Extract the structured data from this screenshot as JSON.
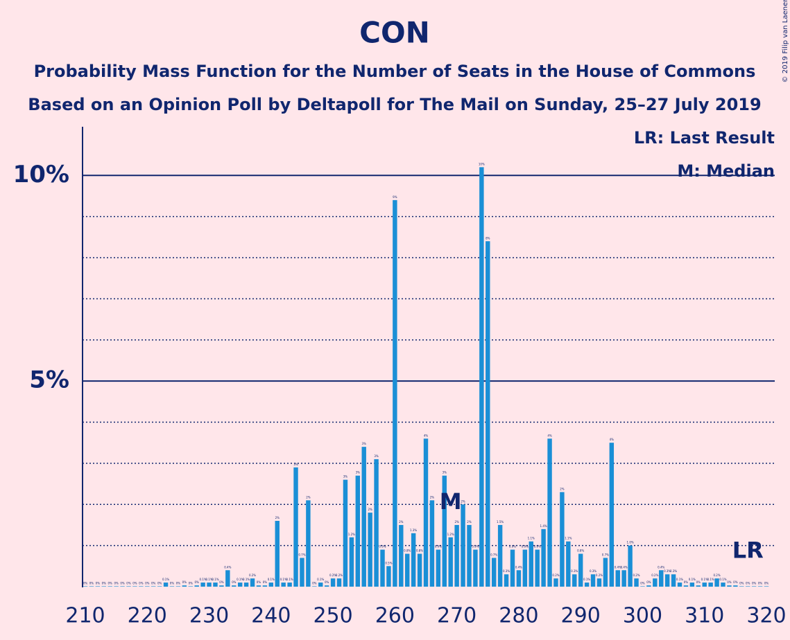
{
  "chart_data": {
    "type": "bar",
    "title": "CON",
    "subtitle": "Probability Mass Function for the Number of Seats in the House of Commons",
    "subtitle2": "Based on an Opinion Poll by Deltapoll for The Mail on Sunday, 25–27 July 2019",
    "credit": "© 2019 Filip van Laenen",
    "legend": [
      "LR: Last Result",
      "M: Median"
    ],
    "color": "#1a8fd6",
    "x": [
      210,
      211,
      212,
      213,
      214,
      215,
      216,
      217,
      218,
      219,
      220,
      221,
      222,
      223,
      224,
      225,
      226,
      227,
      228,
      229,
      230,
      231,
      232,
      233,
      234,
      235,
      236,
      237,
      238,
      239,
      240,
      241,
      242,
      243,
      244,
      245,
      246,
      247,
      248,
      249,
      250,
      251,
      252,
      253,
      254,
      255,
      256,
      257,
      258,
      259,
      260,
      261,
      262,
      263,
      264,
      265,
      266,
      267,
      268,
      269,
      270,
      271,
      272,
      273,
      274,
      275,
      276,
      277,
      278,
      279,
      280,
      281,
      282,
      283,
      284,
      285,
      286,
      287,
      288,
      289,
      290,
      291,
      292,
      293,
      294,
      295,
      296,
      297,
      298,
      299,
      300,
      301,
      302,
      303,
      304,
      305,
      306,
      307,
      308,
      309,
      310,
      311,
      312,
      313,
      314,
      315,
      316,
      317,
      318,
      319,
      320
    ],
    "values": [
      0.01,
      0.01,
      0.01,
      0.01,
      0.01,
      0.01,
      0.01,
      0.01,
      0.01,
      0.01,
      0.01,
      0.01,
      0.01,
      0.1,
      0.01,
      0.01,
      0.03,
      0.01,
      0.03,
      0.1,
      0.1,
      0.1,
      0.03,
      0.4,
      0.03,
      0.1,
      0.1,
      0.2,
      0.03,
      0.03,
      0.1,
      1.6,
      0.1,
      0.1,
      2.9,
      0.7,
      2.1,
      0.01,
      0.1,
      0.03,
      0.2,
      0.2,
      2.6,
      1.2,
      2.7,
      3.4,
      1.8,
      3.1,
      0.9,
      0.5,
      9.4,
      1.5,
      0.8,
      1.3,
      0.8,
      3.6,
      2.1,
      0.9,
      2.7,
      1.2,
      1.5,
      2.0,
      1.5,
      0.9,
      10.2,
      8.4,
      0.7,
      1.5,
      0.3,
      0.9,
      0.4,
      0.9,
      1.1,
      0.9,
      1.4,
      3.6,
      0.2,
      2.3,
      1.1,
      0.3,
      0.8,
      0.1,
      0.3,
      0.2,
      0.7,
      3.5,
      0.4,
      0.4,
      1.0,
      0.2,
      0.01,
      0.03,
      0.2,
      0.4,
      0.3,
      0.3,
      0.1,
      0.03,
      0.1,
      0.03,
      0.1,
      0.1,
      0.2,
      0.1,
      0.03,
      0.03,
      0.01,
      0.01,
      0.01,
      0.01,
      0.01
    ],
    "value_labels": [
      "0%",
      "0%",
      "0%",
      "0%",
      "0%",
      "0%",
      "0%",
      "0%",
      "0%",
      "0%",
      "0%",
      "0%",
      "0%",
      "0.1%",
      "0%",
      "0%",
      "0%",
      "0%",
      "0%",
      "0.1%",
      "0.1%",
      "0.1%",
      "0%",
      "0.4%",
      "0%",
      "0.1%",
      "0.1%",
      "0.2%",
      "0%",
      "0%",
      "0.1%",
      "2%",
      "0.1%",
      "0.1%",
      "3%",
      "0.7%",
      "2%",
      "0%",
      "0.1%",
      "0%",
      "0.2%",
      "0.2%",
      "3%",
      "1.2%",
      "3%",
      "3%",
      "2%",
      "3%",
      "0.9%",
      "0.5%",
      "9%",
      "2%",
      "0.8%",
      "1.3%",
      "0.8%",
      "4%",
      "2%",
      "0.9%",
      "3%",
      "1.2%",
      "2%",
      "2%",
      "2%",
      "0.9%",
      "10%",
      "8%",
      "0.7%",
      "1.5%",
      "0.3%",
      "0.9%",
      "0.4%",
      "0.9%",
      "1.1%",
      "0.9%",
      "1.4%",
      "4%",
      "0.2%",
      "2%",
      "1.1%",
      "0.3%",
      "0.8%",
      "0.1%",
      "0.3%",
      "0.2%",
      "0.7%",
      "4%",
      "0.4%",
      "0.4%",
      "1.0%",
      "0.2%",
      "0%",
      "0%",
      "0.2%",
      "0.4%",
      "0.3%",
      "0.3%",
      "0.1%",
      "0%",
      "0.1%",
      "0%",
      "0.1%",
      "0.1%",
      "0.2%",
      "0.1%",
      "0%",
      "0%",
      "0%",
      "0%",
      "0%",
      "0%",
      "0%"
    ],
    "markers": [
      {
        "x": 269,
        "label": "M"
      },
      {
        "x": 317,
        "label": "LR"
      }
    ],
    "xlim": [
      210,
      320
    ],
    "xticks": [
      210,
      220,
      230,
      240,
      250,
      260,
      270,
      280,
      290,
      300,
      310,
      320
    ],
    "ylim": [
      0,
      11.2
    ],
    "yticks": [
      {
        "value": 5,
        "label": "5%"
      },
      {
        "value": 10,
        "label": "10%"
      }
    ],
    "minor_yticks": [
      1,
      2,
      3,
      4,
      6,
      7,
      8,
      9
    ]
  }
}
